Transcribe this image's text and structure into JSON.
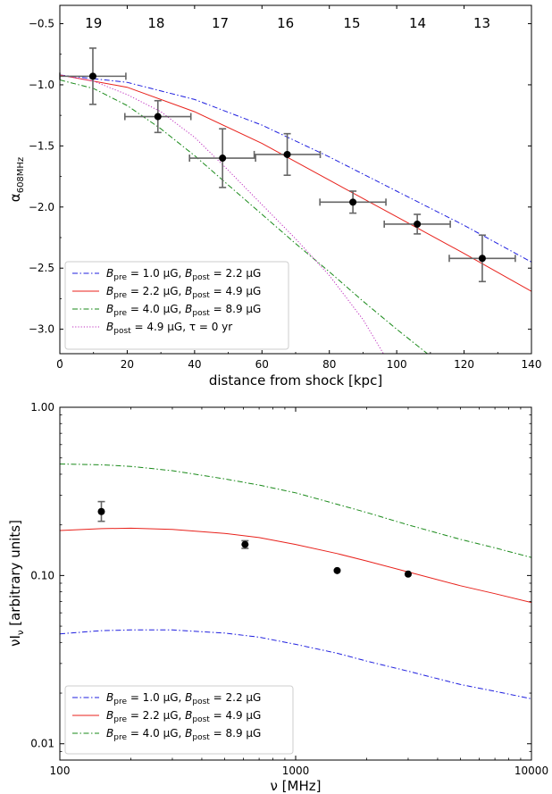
{
  "chart_data": [
    {
      "type": "line",
      "xlabel": "distance from shock [kpc]",
      "ylabel_main": "α",
      "ylabel_sub": "608MHz",
      "xlim": [
        0,
        140
      ],
      "ylim": [
        -3.2,
        -0.35
      ],
      "xticks": [
        0,
        20,
        40,
        60,
        80,
        100,
        120,
        140
      ],
      "xtick_labels": [
        "0",
        "20",
        "40",
        "60",
        "80",
        "100",
        "120",
        "140"
      ],
      "yticks": [
        -3.0,
        -2.5,
        -2.0,
        -1.5,
        -1.0,
        -0.5
      ],
      "ytick_labels": [
        "−3.0",
        "−2.5",
        "−2.0",
        "−1.5",
        "−1.0",
        "−0.5"
      ],
      "region_labels": [
        {
          "x": 10,
          "text": "19"
        },
        {
          "x": 28.6,
          "text": "18"
        },
        {
          "x": 47.6,
          "text": "17"
        },
        {
          "x": 67,
          "text": "16"
        },
        {
          "x": 86.7,
          "text": "15"
        },
        {
          "x": 106.2,
          "text": "14"
        },
        {
          "x": 125.3,
          "text": "13"
        }
      ],
      "points": [
        {
          "x": 9.8,
          "y": -0.93,
          "xerr": 9.8,
          "yerr": 0.23
        },
        {
          "x": 29.1,
          "y": -1.26,
          "xerr": 9.8,
          "yerr": 0.13
        },
        {
          "x": 48.3,
          "y": -1.6,
          "xerr": 9.8,
          "yerr": 0.24
        },
        {
          "x": 67.5,
          "y": -1.57,
          "xerr": 9.8,
          "yerr": 0.17
        },
        {
          "x": 87.0,
          "y": -1.96,
          "xerr": 9.8,
          "yerr": 0.09
        },
        {
          "x": 106.1,
          "y": -2.14,
          "xerr": 9.8,
          "yerr": 0.08
        },
        {
          "x": 125.4,
          "y": -2.42,
          "xerr": 9.8,
          "yerr": 0.19
        }
      ],
      "series": [
        {
          "name_pre": "1.0 μG",
          "name_post": "2.2 μG",
          "name_extra": "",
          "color": "#1f1fdf",
          "style": "dashdot",
          "x": [
            0,
            20,
            40,
            60,
            80,
            100,
            120,
            140
          ],
          "y": [
            -0.92,
            -0.98,
            -1.12,
            -1.33,
            -1.59,
            -1.87,
            -2.15,
            -2.45
          ]
        },
        {
          "name_pre": "2.2 μG",
          "name_post": "4.9 μG",
          "name_extra": "",
          "color": "#e8211b",
          "style": "solid",
          "x": [
            0,
            20,
            40,
            60,
            80,
            100,
            120,
            140
          ],
          "y": [
            -0.92,
            -1.02,
            -1.22,
            -1.48,
            -1.78,
            -2.08,
            -2.38,
            -2.69
          ]
        },
        {
          "name_pre": "4.0 μG",
          "name_post": "8.9 μG",
          "name_extra": "",
          "color": "#1a8a1a",
          "style": "dashdot",
          "x": [
            0,
            10,
            20,
            30,
            40,
            50,
            60,
            70,
            80,
            90,
            100,
            110
          ],
          "y": [
            -0.96,
            -1.03,
            -1.17,
            -1.36,
            -1.58,
            -1.82,
            -2.06,
            -2.3,
            -2.53,
            -2.77,
            -3.0,
            -3.22
          ]
        },
        {
          "name_pre": "",
          "name_post": "4.9 μG",
          "name_extra": "τ = 0 yr",
          "color": "#bf2fbf",
          "style": "dotted",
          "x": [
            0,
            10,
            20,
            30,
            40,
            50,
            60,
            70,
            80,
            90,
            96.5
          ],
          "y": [
            -0.92,
            -0.97,
            -1.08,
            -1.22,
            -1.43,
            -1.7,
            -1.98,
            -2.26,
            -2.56,
            -2.92,
            -3.22
          ]
        }
      ],
      "legend": "lower-left"
    },
    {
      "type": "line",
      "xlabel": "ν [MHz]",
      "ylabel": "νI",
      "ylabel_sub": "ν",
      "ylabel_rest": " [arbitrary units]",
      "xscale": "log",
      "yscale": "log",
      "xlim": [
        100,
        10000
      ],
      "ylim": [
        0.008,
        1.0
      ],
      "xticks": [
        100,
        1000,
        10000
      ],
      "xtick_labels": [
        "100",
        "1000",
        "10000"
      ],
      "yticks": [
        0.01,
        0.1,
        1.0
      ],
      "ytick_labels": [
        "0.01",
        "0.10",
        "1.00"
      ],
      "points": [
        {
          "x": 150,
          "y": 0.24,
          "yerr_lo": 0.03,
          "yerr_hi": 0.035
        },
        {
          "x": 610,
          "y": 0.153,
          "yerr_lo": 0.008,
          "yerr_hi": 0.008
        },
        {
          "x": 1500,
          "y": 0.107,
          "yerr_lo": 0,
          "yerr_hi": 0
        },
        {
          "x": 3000,
          "y": 0.102,
          "yerr_lo": 0,
          "yerr_hi": 0
        }
      ],
      "series": [
        {
          "name_pre": "1.0 μG",
          "name_post": "2.2 μG",
          "color": "#1f1fdf",
          "style": "dashdot",
          "x": [
            100,
            150,
            200,
            300,
            500,
            700,
            1000,
            1500,
            2000,
            3000,
            5000,
            7000,
            10000
          ],
          "y": [
            0.045,
            0.047,
            0.0475,
            0.0475,
            0.0455,
            0.043,
            0.039,
            0.0345,
            0.031,
            0.027,
            0.0225,
            0.0205,
            0.0185
          ]
        },
        {
          "name_pre": "2.2 μG",
          "name_post": "4.9 μG",
          "color": "#e8211b",
          "style": "solid",
          "x": [
            100,
            150,
            200,
            300,
            500,
            700,
            1000,
            1500,
            2000,
            3000,
            5000,
            7000,
            10000
          ],
          "y": [
            0.185,
            0.19,
            0.191,
            0.188,
            0.178,
            0.168,
            0.153,
            0.135,
            0.122,
            0.105,
            0.087,
            0.078,
            0.069
          ]
        },
        {
          "name_pre": "4.0 μG",
          "name_post": "8.9 μG",
          "color": "#1a8a1a",
          "style": "dashdot",
          "x": [
            100,
            150,
            200,
            300,
            500,
            700,
            1000,
            1500,
            2000,
            3000,
            5000,
            7000,
            10000
          ],
          "y": [
            0.46,
            0.455,
            0.445,
            0.42,
            0.375,
            0.345,
            0.31,
            0.265,
            0.237,
            0.2,
            0.164,
            0.146,
            0.128
          ]
        }
      ],
      "legend": "lower-left"
    }
  ]
}
